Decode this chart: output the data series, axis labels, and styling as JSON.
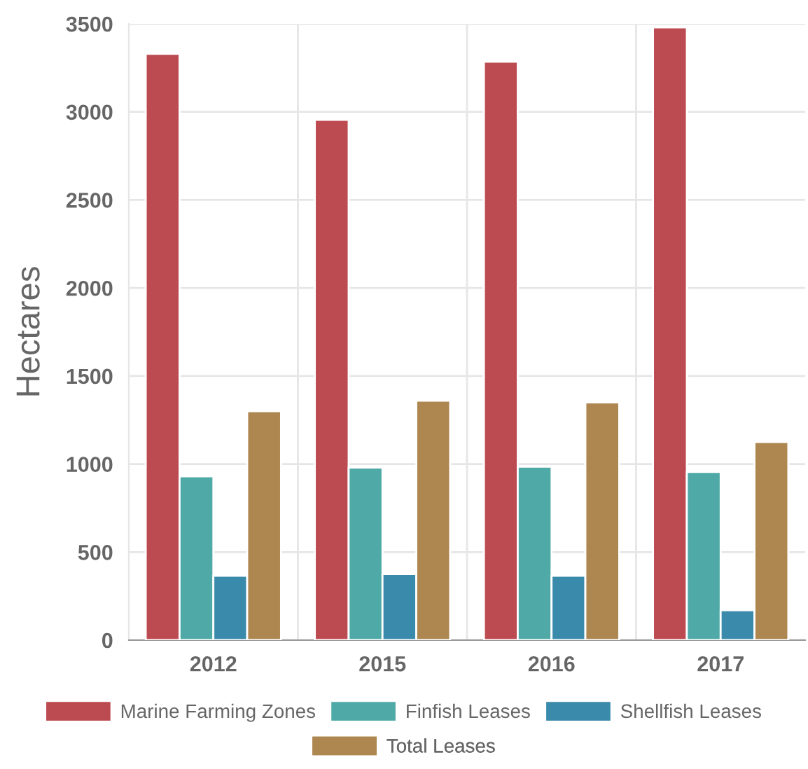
{
  "chart_data": {
    "type": "bar",
    "ylabel": "Hectares",
    "categories": [
      "2012",
      "2015",
      "2016",
      "2017"
    ],
    "series": [
      {
        "name": "Marine Farming Zones",
        "color": "#bc4b51",
        "values": [
          3330,
          2955,
          3285,
          3480
        ]
      },
      {
        "name": "Finfish Leases",
        "color": "#4fa9a6",
        "values": [
          930,
          980,
          985,
          955
        ]
      },
      {
        "name": "Shellfish Leases",
        "color": "#3a8aab",
        "values": [
          365,
          375,
          365,
          170
        ]
      },
      {
        "name": "Total Leases",
        "color": "#ad8650",
        "values": [
          1300,
          1360,
          1350,
          1125
        ]
      }
    ],
    "ylim": [
      0,
      3500
    ],
    "yticks": [
      0,
      500,
      1000,
      1500,
      2000,
      2500,
      3000,
      3500
    ],
    "grid": true,
    "legend": "bottom"
  }
}
